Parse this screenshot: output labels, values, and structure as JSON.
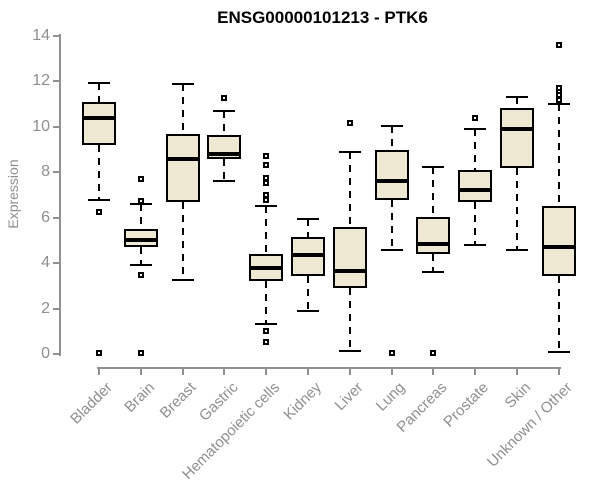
{
  "chart_data": {
    "type": "boxplot",
    "title": "ENSG00000101213 - PTK6",
    "ylabel": "Expression",
    "xlabel": "",
    "ylim": [
      0,
      14
    ],
    "yticks": [
      0,
      2,
      4,
      6,
      8,
      10,
      12,
      14
    ],
    "grid": false,
    "legend": "none",
    "categories": [
      "Bladder",
      "Brain",
      "Breast",
      "Gastric",
      "Hematopoietic cells",
      "Kidney",
      "Liver",
      "Lung",
      "Pancreas",
      "Prostate",
      "Skin",
      "Unknown / Other"
    ],
    "boxes": [
      {
        "category": "Bladder",
        "whislo": 6.8,
        "q1": 9.2,
        "med": 10.4,
        "q3": 11.1,
        "whishi": 11.95,
        "outliers": [
          6.25,
          0.05
        ]
      },
      {
        "category": "Brain",
        "whislo": 3.9,
        "q1": 4.7,
        "med": 5.0,
        "q3": 5.5,
        "whishi": 6.6,
        "outliers": [
          7.7,
          6.75,
          3.5,
          0.05
        ]
      },
      {
        "category": "Breast",
        "whislo": 3.25,
        "q1": 6.7,
        "med": 8.6,
        "q3": 9.7,
        "whishi": 11.9,
        "outliers": []
      },
      {
        "category": "Gastric",
        "whislo": 7.6,
        "q1": 8.6,
        "med": 8.8,
        "q3": 9.65,
        "whishi": 10.7,
        "outliers": [
          11.25
        ]
      },
      {
        "category": "Hematopoietic cells",
        "whislo": 1.3,
        "q1": 3.2,
        "med": 3.8,
        "q3": 4.4,
        "whishi": 6.5,
        "outliers": [
          8.7,
          8.3,
          7.75,
          7.55,
          7.0,
          6.8,
          1.0,
          0.55
        ]
      },
      {
        "category": "Kidney",
        "whislo": 1.9,
        "q1": 3.45,
        "med": 4.35,
        "q3": 5.15,
        "whishi": 5.95,
        "outliers": []
      },
      {
        "category": "Liver",
        "whislo": 0.15,
        "q1": 2.9,
        "med": 3.65,
        "q3": 5.6,
        "whishi": 8.9,
        "outliers": [
          10.15
        ]
      },
      {
        "category": "Lung",
        "whislo": 4.6,
        "q1": 6.8,
        "med": 7.6,
        "q3": 9.0,
        "whishi": 10.05,
        "outliers": [
          0.05
        ]
      },
      {
        "category": "Pancreas",
        "whislo": 3.6,
        "q1": 4.4,
        "med": 4.85,
        "q3": 6.05,
        "whishi": 8.25,
        "outliers": [
          0.05
        ]
      },
      {
        "category": "Prostate",
        "whislo": 4.8,
        "q1": 6.7,
        "med": 7.2,
        "q3": 8.1,
        "whishi": 9.9,
        "outliers": [
          10.4
        ]
      },
      {
        "category": "Skin",
        "whislo": 4.6,
        "q1": 8.2,
        "med": 9.9,
        "q3": 10.85,
        "whishi": 11.3,
        "outliers": []
      },
      {
        "category": "Unknown / Other",
        "whislo": 0.1,
        "q1": 3.45,
        "med": 4.7,
        "q3": 6.5,
        "whishi": 11.0,
        "outliers": [
          13.6,
          11.7,
          11.55,
          11.4,
          11.2
        ]
      }
    ],
    "colors": {
      "box_fill": "#EFE9D3",
      "box_border": "#000000",
      "median": "#000000",
      "whisker": "#000000",
      "axis_line": "#909090",
      "tick_label": "#8f8f8f",
      "title": "#000000",
      "background": "#ffffff"
    }
  }
}
